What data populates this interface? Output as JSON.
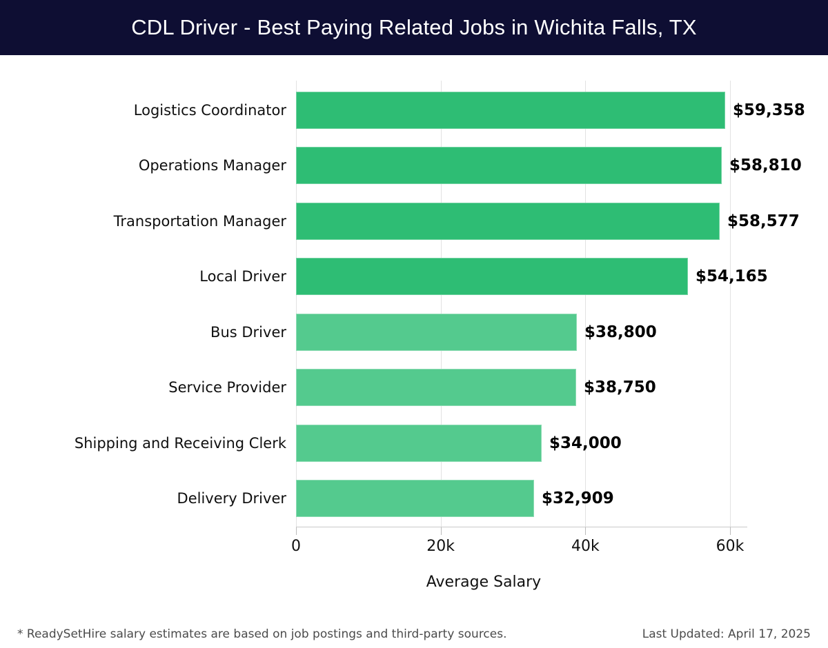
{
  "header": {
    "title": "CDL Driver - Best Paying Related Jobs in Wichita Falls, TX"
  },
  "chart_data": {
    "type": "bar",
    "orientation": "horizontal",
    "title": "CDL Driver - Best Paying Related Jobs in Wichita Falls, TX",
    "xlabel": "Average Salary",
    "ylabel": "",
    "xlim": [
      0,
      62400
    ],
    "grid": true,
    "categories": [
      "Logistics Coordinator",
      "Operations Manager",
      "Transportation Manager",
      "Local Driver",
      "Bus Driver",
      "Service Provider",
      "Shipping and Receiving Clerk",
      "Delivery Driver"
    ],
    "values": [
      59358,
      58810,
      58577,
      54165,
      38800,
      38750,
      34000,
      32909
    ],
    "value_labels": [
      "$59,358",
      "$58,810",
      "$58,577",
      "$54,165",
      "$38,800",
      "$38,750",
      "$34,000",
      "$32,909"
    ],
    "bar_colors": [
      "#2ebd74",
      "#2ebd74",
      "#2ebd74",
      "#2ebd74",
      "#54ca8e",
      "#54ca8e",
      "#54ca8e",
      "#54ca8e"
    ],
    "ticks": [
      {
        "value": 0,
        "label": "0"
      },
      {
        "value": 20000,
        "label": "20k"
      },
      {
        "value": 40000,
        "label": "40k"
      },
      {
        "value": 60000,
        "label": "60k"
      }
    ]
  },
  "colors": {
    "header_bg": "#0e0e33",
    "bar_high": "#2ebd74",
    "bar_low": "#54ca8e",
    "gridline": "#e2e2e2",
    "axis_line": "#c9c9c9",
    "value_text": "#000000",
    "label_text": "#0f0f0f"
  },
  "footer": {
    "note": "* ReadySetHire salary estimates are based on job postings and third-party sources.",
    "updated": "Last Updated: April 17, 2025"
  }
}
